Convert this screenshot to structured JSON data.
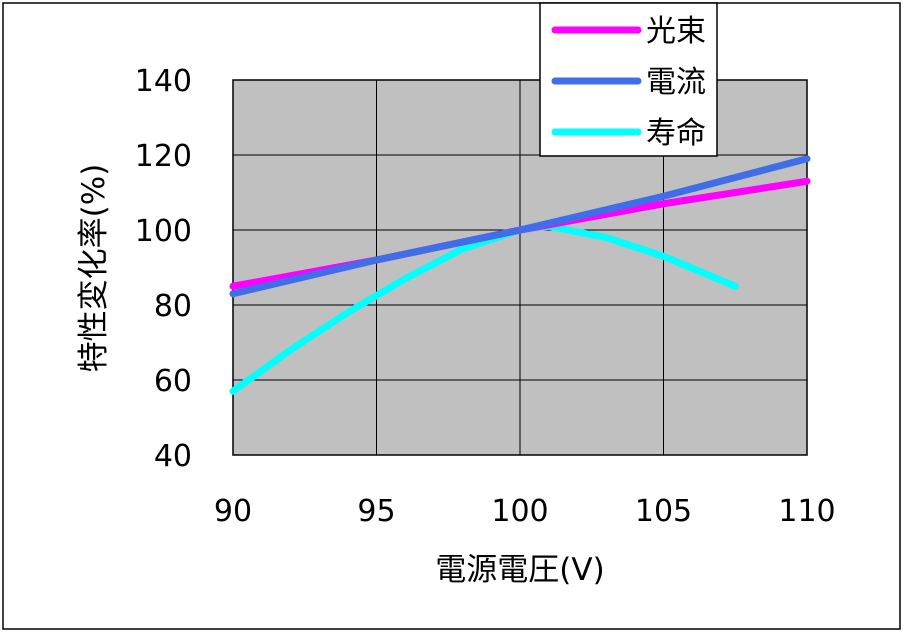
{
  "chart_data": {
    "type": "line",
    "xlabel": "電源電圧(V)",
    "ylabel": "特性変化率(%)",
    "xlim": [
      90,
      110
    ],
    "ylim": [
      40,
      140
    ],
    "x_ticks": [
      90,
      95,
      100,
      105,
      110
    ],
    "y_ticks": [
      40,
      60,
      80,
      100,
      120,
      140
    ],
    "x_tick_labels": [
      "90",
      "95",
      "100",
      "105",
      "110"
    ],
    "y_tick_labels": [
      "40",
      "60",
      "80",
      "100",
      "120",
      "140"
    ],
    "grid": true,
    "legend_position": "top-right",
    "plot_background": "#c0c0c0",
    "series": [
      {
        "name": "光束",
        "color": "#ff00ff",
        "x": [
          90,
          95,
          100,
          105,
          110
        ],
        "y": [
          85,
          92,
          100,
          107,
          113
        ]
      },
      {
        "name": "電流",
        "color": "#3f6ee8",
        "x": [
          90,
          95,
          100,
          105,
          110
        ],
        "y": [
          83,
          92,
          100,
          109,
          119
        ]
      },
      {
        "name": "寿命",
        "color": "#00ffff",
        "x": [
          90,
          92,
          94,
          96,
          98,
          100,
          101,
          103,
          105,
          107.5
        ],
        "y": [
          57,
          68,
          78,
          87,
          95,
          100,
          101,
          98,
          93,
          85
        ]
      }
    ]
  }
}
